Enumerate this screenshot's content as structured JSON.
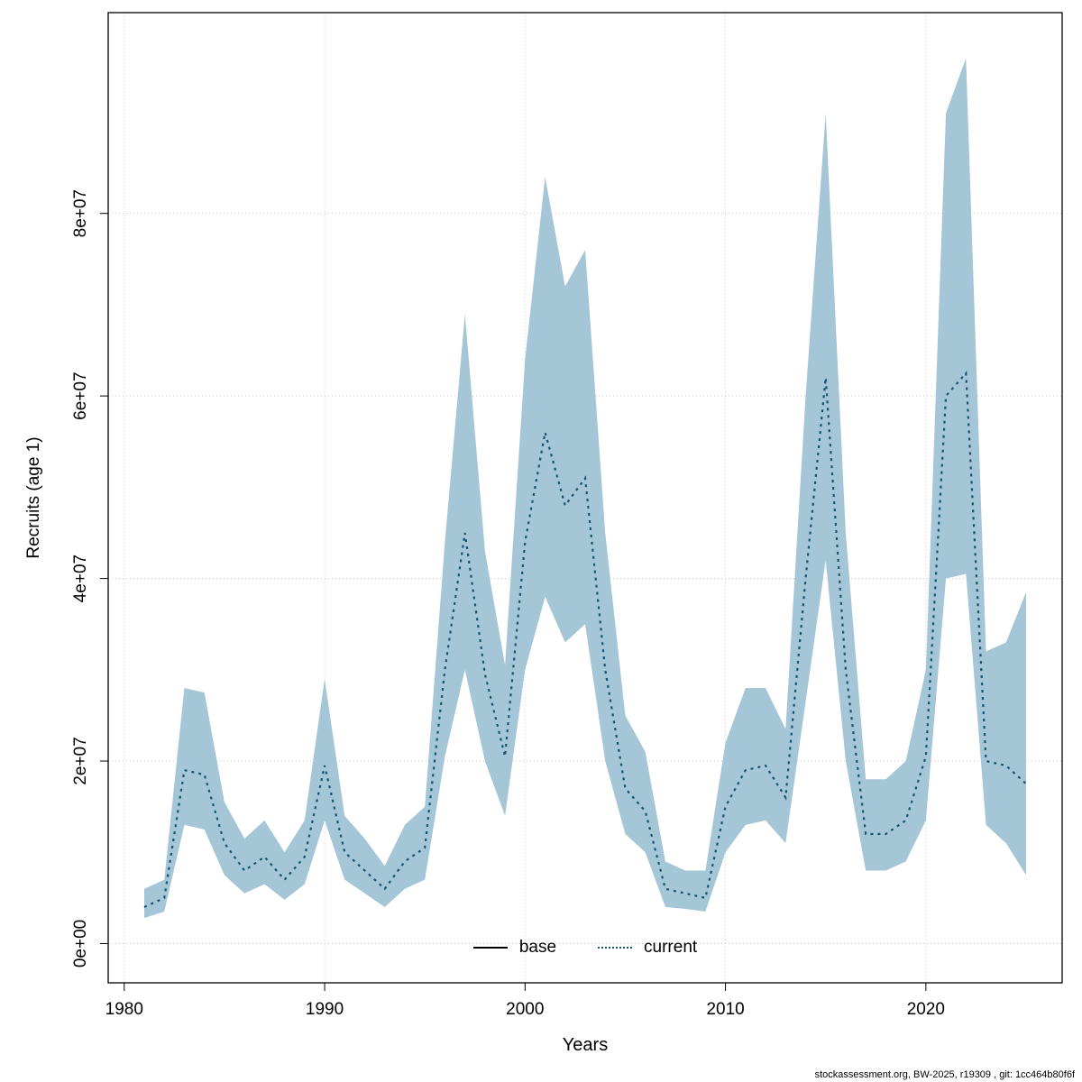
{
  "chart_data": {
    "type": "line",
    "title": "",
    "xlabel": "Years",
    "ylabel": "Recruits (age 1)",
    "x_ticks": [
      1980,
      1990,
      2000,
      2010,
      2020
    ],
    "x_tick_labels": [
      "1980",
      "1990",
      "2000",
      "2010",
      "2020"
    ],
    "y_ticks": [
      0,
      20000000.0,
      40000000.0,
      60000000.0,
      80000000.0
    ],
    "y_tick_labels": [
      "0e+00",
      "2e+07",
      "4e+07",
      "6e+07",
      "8e+07"
    ],
    "xlim": [
      1979.2,
      2026.8
    ],
    "ylim": [
      -4300000.0,
      102000000.0
    ],
    "grid": true,
    "grid_color": "#c8c8c8",
    "band_color": "#a5c6d7",
    "line_color": "#17536f",
    "legend_position": "bottom",
    "legend": [
      {
        "name": "base",
        "style": "solid",
        "color": "#000000"
      },
      {
        "name": "current",
        "style": "dotted",
        "color": "#17536f"
      }
    ],
    "series": {
      "years": [
        1981,
        1982,
        1983,
        1984,
        1985,
        1986,
        1987,
        1988,
        1989,
        1990,
        1991,
        1992,
        1993,
        1994,
        1995,
        1996,
        1997,
        1998,
        1999,
        2000,
        2001,
        2002,
        2003,
        2004,
        2005,
        2006,
        2007,
        2008,
        2009,
        2010,
        2011,
        2012,
        2013,
        2014,
        2015,
        2016,
        2017,
        2018,
        2019,
        2020,
        2021,
        2022,
        2023,
        2024,
        2025
      ],
      "current": [
        4000000.0,
        5000000.0,
        19000000.0,
        18500000.0,
        11000000.0,
        8000000.0,
        9500000.0,
        7000000.0,
        9500000.0,
        19500000.0,
        10000000.0,
        8000000.0,
        6000000.0,
        9000000.0,
        10500000.0,
        30000000.0,
        45000000.0,
        29500000.0,
        20500000.0,
        44000000.0,
        56000000.0,
        48000000.0,
        51000000.0,
        30000000.0,
        17000000.0,
        14500000.0,
        6000000.0,
        5500000.0,
        5000000.0,
        15000000.0,
        19000000.0,
        19500000.0,
        16000000.0,
        40000000.0,
        62000000.0,
        30000000.0,
        12000000.0,
        12000000.0,
        13500000.0,
        20500000.0,
        60000000.0,
        62500000.0,
        20000000.0,
        19500000.0,
        17500000.0
      ],
      "lower": [
        2800000.0,
        3500000.0,
        13000000.0,
        12500000.0,
        7500000.0,
        5500000.0,
        6500000.0,
        4800000.0,
        6500000.0,
        13500000.0,
        7000000.0,
        5500000.0,
        4000000.0,
        6000000.0,
        7000000.0,
        20500000.0,
        30000000.0,
        20000000.0,
        14000000.0,
        30000000.0,
        38000000.0,
        33000000.0,
        35000000.0,
        20000000.0,
        12000000.0,
        10000000.0,
        4000000.0,
        3800000.0,
        3500000.0,
        10000000.0,
        13000000.0,
        13500000.0,
        11000000.0,
        26500000.0,
        42000000.0,
        20000000.0,
        8000000.0,
        8000000.0,
        9000000.0,
        13500000.0,
        40000000.0,
        40500000.0,
        13000000.0,
        11000000.0,
        7500000.0
      ],
      "upper": [
        6000000.0,
        7000000.0,
        28000000.0,
        27500000.0,
        15500000.0,
        11500000.0,
        13500000.0,
        10000000.0,
        13500000.0,
        29000000.0,
        14000000.0,
        11500000.0,
        8500000.0,
        13000000.0,
        15000000.0,
        44000000.0,
        69000000.0,
        43000000.0,
        30500000.0,
        64000000.0,
        84000000.0,
        72000000.0,
        76000000.0,
        45000000.0,
        25000000.0,
        21000000.0,
        9000000.0,
        8000000.0,
        8000000.0,
        22000000.0,
        28000000.0,
        28000000.0,
        23500000.0,
        60000000.0,
        91000000.0,
        45000000.0,
        18000000.0,
        18000000.0,
        20000000.0,
        30000000.0,
        91000000.0,
        97000000.0,
        32000000.0,
        33000000.0,
        38500000.0
      ]
    }
  },
  "footer": "stockassessment.org, BW-2025, r19309 , git: 1cc464b80f6f"
}
